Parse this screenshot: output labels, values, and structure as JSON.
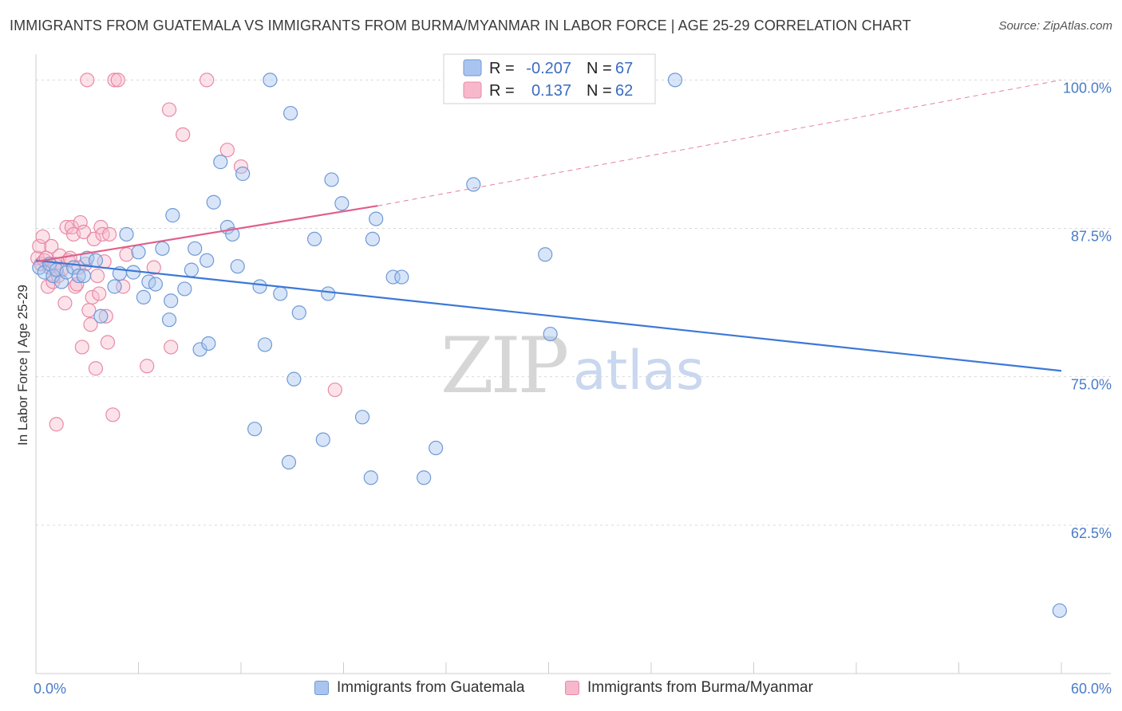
{
  "header": {
    "title": "IMMIGRANTS FROM GUATEMALA VS IMMIGRANTS FROM BURMA/MYANMAR IN LABOR FORCE | AGE 25-29 CORRELATION CHART",
    "source": "Source: ZipAtlas.com"
  },
  "watermark": {
    "zip": "ZIP",
    "atlas": "atlas"
  },
  "legend": {
    "r_label": "R =",
    "n_label": "N =",
    "series": [
      {
        "name": "Immigrants from Guatemala",
        "r": "-0.207",
        "n": "67",
        "fill": "#a9c5ef",
        "stroke": "#6f9ad6"
      },
      {
        "name": "Immigrants from Burma/Myanmar",
        "r": "0.137",
        "n": "62",
        "fill": "#f7b8cb",
        "stroke": "#e88aa6"
      }
    ]
  },
  "chart_data": {
    "type": "scatter",
    "title": "IMMIGRANTS FROM GUATEMALA VS IMMIGRANTS FROM BURMA/MYANMAR IN LABOR FORCE | AGE 25-29 CORRELATION CHART",
    "xlabel": "",
    "ylabel": "In Labor Force | Age 25-29",
    "xlim": [
      0,
      60
    ],
    "ylim": [
      50,
      101.5
    ],
    "x_tick_labels": [
      "0.0%",
      "60.0%"
    ],
    "y_ticks": [
      62.5,
      75.0,
      87.5,
      100.0
    ],
    "y_tick_labels": [
      "62.5%",
      "75.0%",
      "87.5%",
      "100.0%"
    ],
    "colors": {
      "guatemala": "#3b78d8",
      "burma": "#e0608a"
    },
    "series": [
      {
        "name": "Immigrants from Guatemala",
        "trend": {
          "x": [
            0,
            60
          ],
          "y": [
            84.8,
            75.5
          ],
          "style": "solid"
        },
        "points": [
          [
            0.2,
            84.2
          ],
          [
            0.5,
            83.8
          ],
          [
            0.8,
            84.5
          ],
          [
            1.0,
            83.5
          ],
          [
            1.2,
            84.0
          ],
          [
            1.5,
            83.0
          ],
          [
            1.8,
            83.8
          ],
          [
            2.2,
            84.2
          ],
          [
            2.5,
            83.5
          ],
          [
            2.8,
            83.5
          ],
          [
            3.0,
            85.0
          ],
          [
            3.5,
            84.8
          ],
          [
            3.8,
            80.1
          ],
          [
            4.6,
            82.6
          ],
          [
            4.9,
            83.7
          ],
          [
            5.3,
            87.0
          ],
          [
            5.7,
            83.8
          ],
          [
            6.0,
            85.5
          ],
          [
            6.3,
            81.7
          ],
          [
            6.6,
            83.0
          ],
          [
            7.0,
            82.8
          ],
          [
            7.4,
            85.8
          ],
          [
            7.8,
            79.8
          ],
          [
            7.9,
            81.4
          ],
          [
            8.0,
            88.6
          ],
          [
            8.7,
            82.4
          ],
          [
            9.1,
            84.0
          ],
          [
            9.3,
            85.8
          ],
          [
            9.6,
            77.3
          ],
          [
            10.0,
            84.8
          ],
          [
            10.1,
            77.8
          ],
          [
            10.4,
            89.7
          ],
          [
            10.8,
            93.1
          ],
          [
            11.2,
            87.6
          ],
          [
            11.5,
            87.0
          ],
          [
            11.8,
            84.3
          ],
          [
            12.1,
            92.1
          ],
          [
            12.8,
            70.6
          ],
          [
            13.1,
            82.6
          ],
          [
            13.4,
            77.7
          ],
          [
            13.7,
            100.0
          ],
          [
            14.3,
            82.0
          ],
          [
            14.8,
            67.8
          ],
          [
            14.9,
            97.2
          ],
          [
            15.1,
            74.8
          ],
          [
            15.4,
            80.4
          ],
          [
            16.3,
            86.6
          ],
          [
            16.8,
            69.7
          ],
          [
            17.1,
            82.0
          ],
          [
            17.3,
            91.6
          ],
          [
            17.9,
            89.6
          ],
          [
            19.1,
            71.6
          ],
          [
            19.6,
            66.5
          ],
          [
            19.7,
            86.6
          ],
          [
            19.9,
            88.3
          ],
          [
            20.9,
            83.4
          ],
          [
            21.4,
            83.4
          ],
          [
            22.7,
            66.5
          ],
          [
            23.4,
            69.0
          ],
          [
            25.6,
            91.2
          ],
          [
            29.8,
            85.3
          ],
          [
            30.1,
            78.6
          ],
          [
            37.4,
            100.0
          ],
          [
            59.9,
            55.3
          ]
        ]
      },
      {
        "name": "Immigrants from Burma/Myanmar",
        "trend": {
          "x": [
            0,
            20
          ],
          "y": [
            84.7,
            89.4
          ],
          "style": "solid",
          "extended": {
            "x": [
              20,
              60
            ],
            "y": [
              89.4,
              100.0
            ],
            "style": "dashed"
          }
        },
        "points": [
          [
            0.1,
            85.0
          ],
          [
            0.2,
            86.0
          ],
          [
            0.3,
            84.5
          ],
          [
            0.4,
            86.8
          ],
          [
            0.5,
            84.8
          ],
          [
            0.6,
            85.0
          ],
          [
            0.7,
            82.6
          ],
          [
            0.8,
            84.2
          ],
          [
            0.9,
            86.0
          ],
          [
            1.0,
            83.0
          ],
          [
            1.1,
            84.5
          ],
          [
            1.2,
            71.0
          ],
          [
            1.3,
            83.5
          ],
          [
            1.4,
            85.2
          ],
          [
            1.5,
            84.0
          ],
          [
            1.7,
            81.2
          ],
          [
            1.8,
            87.6
          ],
          [
            1.9,
            84.8
          ],
          [
            2.0,
            85.0
          ],
          [
            2.1,
            87.6
          ],
          [
            2.2,
            87.0
          ],
          [
            2.3,
            82.6
          ],
          [
            2.4,
            82.8
          ],
          [
            2.5,
            84.2
          ],
          [
            2.6,
            88.0
          ],
          [
            2.7,
            77.5
          ],
          [
            2.8,
            87.2
          ],
          [
            2.9,
            84.5
          ],
          [
            3.0,
            100.0
          ],
          [
            3.1,
            80.6
          ],
          [
            3.2,
            79.4
          ],
          [
            3.3,
            81.7
          ],
          [
            3.4,
            86.6
          ],
          [
            3.5,
            75.7
          ],
          [
            3.6,
            83.5
          ],
          [
            3.7,
            82.0
          ],
          [
            3.8,
            87.6
          ],
          [
            3.9,
            87.0
          ],
          [
            4.0,
            84.7
          ],
          [
            4.1,
            80.1
          ],
          [
            4.2,
            77.9
          ],
          [
            4.3,
            87.0
          ],
          [
            4.5,
            71.8
          ],
          [
            4.6,
            100.0
          ],
          [
            4.8,
            100.0
          ],
          [
            5.1,
            82.6
          ],
          [
            5.3,
            85.3
          ],
          [
            6.5,
            75.9
          ],
          [
            6.9,
            84.2
          ],
          [
            7.8,
            97.5
          ],
          [
            7.9,
            77.5
          ],
          [
            8.6,
            95.4
          ],
          [
            10.0,
            100.0
          ],
          [
            11.2,
            94.1
          ],
          [
            12.0,
            92.7
          ],
          [
            17.5,
            73.9
          ]
        ]
      }
    ]
  }
}
